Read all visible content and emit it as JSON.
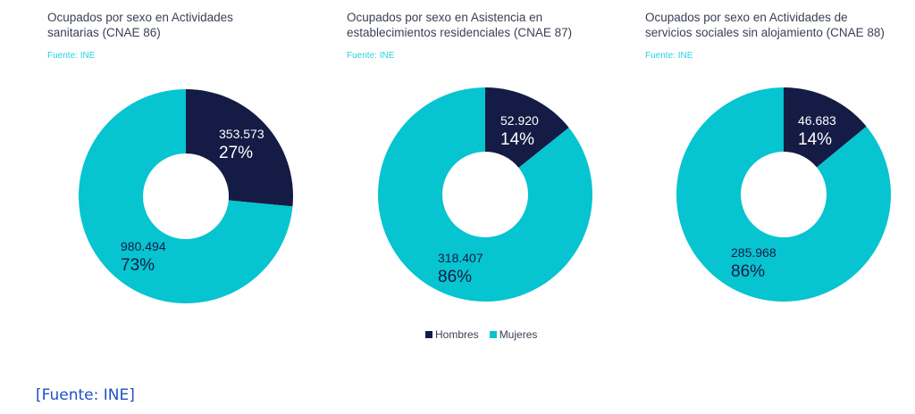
{
  "colors": {
    "hombres": "#141b44",
    "mujeres": "#06c4d0"
  },
  "chart_data": [
    {
      "type": "pie",
      "title": "Ocupados por sexo en Actividades sanitarias (CNAE 86)",
      "source": "Fuente: INE",
      "categories": [
        "Hombres",
        "Mujeres"
      ],
      "values": [
        353573,
        980494
      ],
      "value_labels": [
        "353.573",
        "980.494"
      ],
      "percent_labels": [
        "27%",
        "73%"
      ]
    },
    {
      "type": "pie",
      "title": "Ocupados por sexo en Asistencia en establecimientos residenciales (CNAE 87)",
      "source": "Fuente: INE",
      "categories": [
        "Hombres",
        "Mujeres"
      ],
      "values": [
        52920,
        318407
      ],
      "value_labels": [
        "52.920",
        "318.407"
      ],
      "percent_labels": [
        "14%",
        "86%"
      ]
    },
    {
      "type": "pie",
      "title": "Ocupados por sexo en Actividades de servicios sociales sin alojamiento (CNAE 88)",
      "source": "Fuente: INE",
      "categories": [
        "Hombres",
        "Mujeres"
      ],
      "values": [
        46683,
        285968
      ],
      "value_labels": [
        "46.683",
        "285.968"
      ],
      "percent_labels": [
        "14%",
        "86%"
      ]
    }
  ],
  "legend": {
    "items": [
      "Hombres",
      "Mujeres"
    ],
    "placement": "bottom"
  },
  "footer": "[Fuente: INE]"
}
